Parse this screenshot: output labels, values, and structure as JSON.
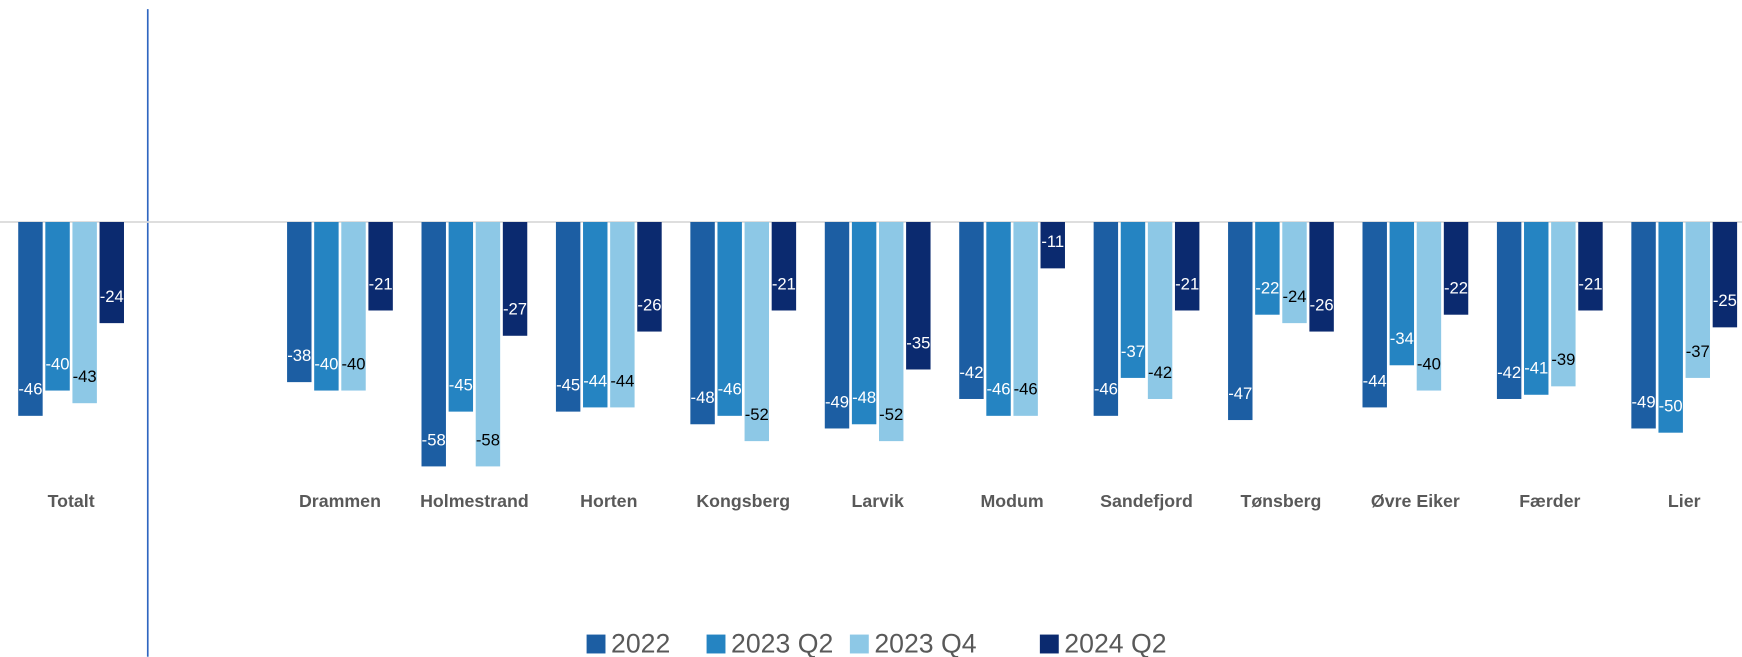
{
  "chart_data": {
    "type": "bar",
    "categories": [
      "Totalt",
      null,
      "Drammen",
      "Holmestrand",
      "Horten",
      "Kongsberg",
      "Larvik",
      "Modum",
      "Sandefjord",
      "Tønsberg",
      "Øvre Eiker",
      "Færder",
      "Lier"
    ],
    "series": [
      {
        "name": "2022",
        "color": "#1c5ea3",
        "values": [
          -46,
          null,
          -38,
          -58,
          -45,
          -48,
          -49,
          -42,
          -46,
          -47,
          -44,
          -42,
          -49
        ]
      },
      {
        "name": "2023 Q2",
        "color": "#2584c2",
        "values": [
          -40,
          null,
          -40,
          -45,
          -44,
          -46,
          -48,
          -46,
          -37,
          -22,
          -34,
          -41,
          -50
        ]
      },
      {
        "name": "2023 Q4",
        "color": "#8dc8e6",
        "values": [
          -43,
          null,
          -40,
          -58,
          -44,
          -52,
          -52,
          -46,
          -42,
          -24,
          -40,
          -39,
          -37
        ]
      },
      {
        "name": "2024 Q2",
        "color": "#0b2a6f",
        "values": [
          -24,
          null,
          -21,
          -27,
          -26,
          -21,
          -35,
          -11,
          -21,
          -26,
          -22,
          -21,
          -25
        ]
      }
    ],
    "ylim": [
      -90,
      50
    ],
    "legend": "bottom"
  }
}
